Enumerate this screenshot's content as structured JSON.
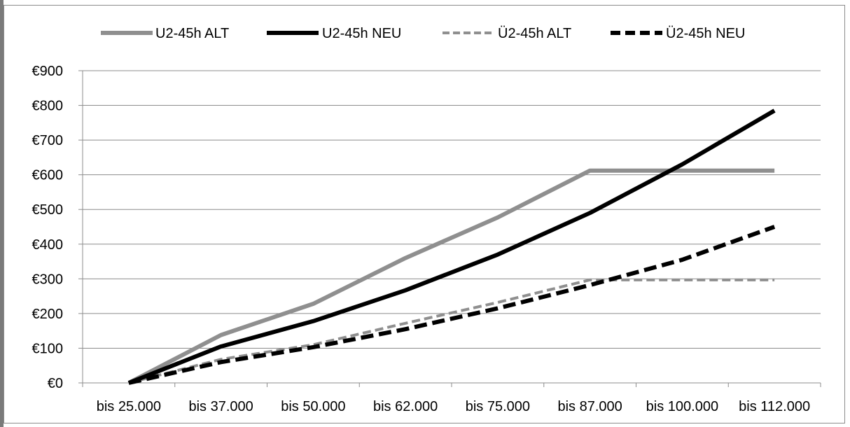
{
  "chart_data": {
    "type": "line",
    "title": "",
    "xlabel": "",
    "ylabel": "",
    "categories": [
      "bis 25.000",
      "bis 37.000",
      "bis 50.000",
      "bis 62.000",
      "bis 75.000",
      "bis 87.000",
      "bis 100.000",
      "bis 112.000"
    ],
    "ylim": [
      0,
      900
    ],
    "yticks": [
      0,
      100,
      200,
      300,
      400,
      500,
      600,
      700,
      800,
      900
    ],
    "ytick_labels": [
      "€0",
      "€100",
      "€200",
      "€300",
      "€400",
      "€500",
      "€600",
      "€700",
      "€800",
      "€900"
    ],
    "grid": true,
    "legend_position": "top",
    "series": [
      {
        "name": "U2-45h ALT",
        "values": [
          0,
          138,
          228,
          360,
          477,
          612,
          612,
          612
        ],
        "color": "#8f8f8f",
        "style": "solid"
      },
      {
        "name": "U2-45h NEU",
        "values": [
          0,
          105,
          178,
          267,
          370,
          490,
          630,
          785
        ],
        "color": "#000000",
        "style": "solid"
      },
      {
        "name": "Ü2-45h ALT",
        "values": [
          0,
          68,
          110,
          172,
          232,
          297,
          297,
          297
        ],
        "color": "#8f8f8f",
        "style": "dashed"
      },
      {
        "name": "Ü2-45h NEU",
        "values": [
          0,
          60,
          103,
          155,
          215,
          282,
          355,
          450
        ],
        "color": "#000000",
        "style": "dashed"
      }
    ]
  }
}
